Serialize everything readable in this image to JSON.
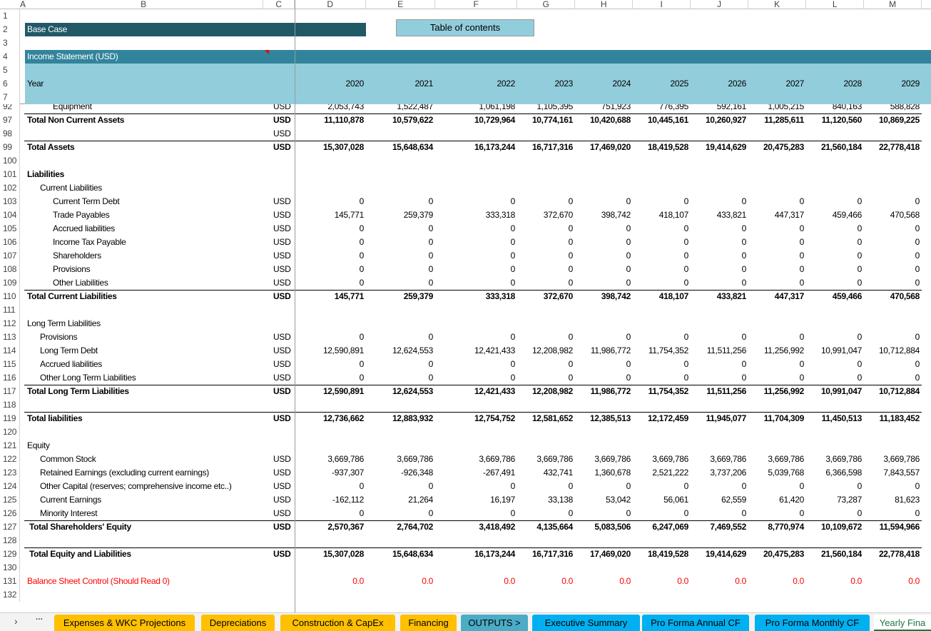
{
  "colors": {
    "base_case_bg": "#215967",
    "income_bg": "#31849B",
    "year_bg": "#92CDDC",
    "toc_bg": "#92CDDC",
    "control_red": "#FF0000",
    "tab_yellow": "#FFC000",
    "tab_teal": "#4BACC6",
    "tab_blue": "#00B0F0"
  },
  "columns": [
    "A",
    "B",
    "C",
    "D",
    "E",
    "F",
    "G",
    "H",
    "I",
    "J",
    "K",
    "L",
    "M"
  ],
  "header": {
    "base_case": "Base Case",
    "toc_button": "Table of contents",
    "income_statement": "Income Statement (USD)",
    "year_label": "Year",
    "years": [
      "2020",
      "2021",
      "2022",
      "2023",
      "2024",
      "2025",
      "2026",
      "2027",
      "2028",
      "2029"
    ],
    "frozen_rows": [
      "1",
      "2",
      "3",
      "4",
      "5",
      "6",
      "7"
    ]
  },
  "rows": [
    {
      "n": "92",
      "label": "Equipment",
      "indent": 2,
      "unit": "USD",
      "values": [
        "2,053,743",
        "1,522,487",
        "1,061,198",
        "1,105,395",
        "751,923",
        "776,395",
        "592,161",
        "1,005,215",
        "840,163",
        "588,828"
      ]
    },
    {
      "n": "97",
      "label": "Total Non Current Assets",
      "indent": 0,
      "bold": true,
      "line": true,
      "unit": "USD",
      "values": [
        "11,110,878",
        "10,579,622",
        "10,729,964",
        "10,774,161",
        "10,420,688",
        "10,445,161",
        "10,260,927",
        "11,285,611",
        "11,120,560",
        "10,869,225"
      ]
    },
    {
      "n": "98",
      "label": "",
      "unit": "USD",
      "values": []
    },
    {
      "n": "99",
      "label": "Total Assets",
      "indent": 0,
      "bold": true,
      "line": true,
      "unit": "USD",
      "values": [
        "15,307,028",
        "15,648,634",
        "16,173,244",
        "16,717,316",
        "17,469,020",
        "18,419,528",
        "19,414,629",
        "20,475,283",
        "21,560,184",
        "22,778,418"
      ]
    },
    {
      "n": "100",
      "label": "",
      "values": []
    },
    {
      "n": "101",
      "label": "Liabilities",
      "indent": 0,
      "bold": true,
      "values": []
    },
    {
      "n": "102",
      "label": "Current Liabilities",
      "indent": 1,
      "values": []
    },
    {
      "n": "103",
      "label": "Current Term Debt",
      "indent": 2,
      "unit": "USD",
      "values": [
        "0",
        "0",
        "0",
        "0",
        "0",
        "0",
        "0",
        "0",
        "0",
        "0"
      ]
    },
    {
      "n": "104",
      "label": "Trade Payables",
      "indent": 2,
      "unit": "USD",
      "values": [
        "145,771",
        "259,379",
        "333,318",
        "372,670",
        "398,742",
        "418,107",
        "433,821",
        "447,317",
        "459,466",
        "470,568"
      ]
    },
    {
      "n": "105",
      "label": "Accrued liabilities",
      "indent": 2,
      "unit": "USD",
      "values": [
        "0",
        "0",
        "0",
        "0",
        "0",
        "0",
        "0",
        "0",
        "0",
        "0"
      ]
    },
    {
      "n": "106",
      "label": "Income Tax Payable",
      "indent": 2,
      "unit": "USD",
      "values": [
        "0",
        "0",
        "0",
        "0",
        "0",
        "0",
        "0",
        "0",
        "0",
        "0"
      ]
    },
    {
      "n": "107",
      "label": "Shareholders",
      "indent": 2,
      "unit": "USD",
      "values": [
        "0",
        "0",
        "0",
        "0",
        "0",
        "0",
        "0",
        "0",
        "0",
        "0"
      ]
    },
    {
      "n": "108",
      "label": "Provisions",
      "indent": 2,
      "unit": "USD",
      "values": [
        "0",
        "0",
        "0",
        "0",
        "0",
        "0",
        "0",
        "0",
        "0",
        "0"
      ]
    },
    {
      "n": "109",
      "label": "Other Liabilities",
      "indent": 2,
      "unit": "USD",
      "values": [
        "0",
        "0",
        "0",
        "0",
        "0",
        "0",
        "0",
        "0",
        "0",
        "0"
      ]
    },
    {
      "n": "110",
      "label": "Total Current Liabilities",
      "indent": 0,
      "bold": true,
      "line": true,
      "unit": "USD",
      "values": [
        "145,771",
        "259,379",
        "333,318",
        "372,670",
        "398,742",
        "418,107",
        "433,821",
        "447,317",
        "459,466",
        "470,568"
      ]
    },
    {
      "n": "111",
      "label": "",
      "values": []
    },
    {
      "n": "112",
      "label": "Long Term Liabilities",
      "indent": 0,
      "values": []
    },
    {
      "n": "113",
      "label": "Provisions",
      "indent": 1,
      "unit": "USD",
      "values": [
        "0",
        "0",
        "0",
        "0",
        "0",
        "0",
        "0",
        "0",
        "0",
        "0"
      ]
    },
    {
      "n": "114",
      "label": "Long Term Debt",
      "indent": 1,
      "unit": "USD",
      "values": [
        "12,590,891",
        "12,624,553",
        "12,421,433",
        "12,208,982",
        "11,986,772",
        "11,754,352",
        "11,511,256",
        "11,256,992",
        "10,991,047",
        "10,712,884"
      ]
    },
    {
      "n": "115",
      "label": "Accrued liabilities",
      "indent": 1,
      "unit": "USD",
      "values": [
        "0",
        "0",
        "0",
        "0",
        "0",
        "0",
        "0",
        "0",
        "0",
        "0"
      ]
    },
    {
      "n": "116",
      "label": "Other Long Term Liabilities",
      "indent": 1,
      "unit": "USD",
      "values": [
        "0",
        "0",
        "0",
        "0",
        "0",
        "0",
        "0",
        "0",
        "0",
        "0"
      ]
    },
    {
      "n": "117",
      "label": "Total Long Term Liabilities",
      "indent": 0,
      "bold": true,
      "line": true,
      "unit": "USD",
      "values": [
        "12,590,891",
        "12,624,553",
        "12,421,433",
        "12,208,982",
        "11,986,772",
        "11,754,352",
        "11,511,256",
        "11,256,992",
        "10,991,047",
        "10,712,884"
      ]
    },
    {
      "n": "118",
      "label": "",
      "values": []
    },
    {
      "n": "119",
      "label": "Total liabilities",
      "indent": 0,
      "bold": true,
      "line": true,
      "unit": "USD",
      "values": [
        "12,736,662",
        "12,883,932",
        "12,754,752",
        "12,581,652",
        "12,385,513",
        "12,172,459",
        "11,945,077",
        "11,704,309",
        "11,450,513",
        "11,183,452"
      ]
    },
    {
      "n": "120",
      "label": "",
      "values": []
    },
    {
      "n": "121",
      "label": "Equity",
      "indent": 0,
      "values": []
    },
    {
      "n": "122",
      "label": "Common Stock",
      "indent": 1,
      "unit": "USD",
      "values": [
        "3,669,786",
        "3,669,786",
        "3,669,786",
        "3,669,786",
        "3,669,786",
        "3,669,786",
        "3,669,786",
        "3,669,786",
        "3,669,786",
        "3,669,786"
      ]
    },
    {
      "n": "123",
      "label": "Retained Earnings (excluding current earnings)",
      "indent": 1,
      "unit": "USD",
      "values": [
        "-937,307",
        "-926,348",
        "-267,491",
        "432,741",
        "1,360,678",
        "2,521,222",
        "3,737,206",
        "5,039,768",
        "6,366,598",
        "7,843,557"
      ]
    },
    {
      "n": "124",
      "label": "Other Capital (reserves; comprehensive income etc..)",
      "indent": 1,
      "unit": "USD",
      "values": [
        "0",
        "0",
        "0",
        "0",
        "0",
        "0",
        "0",
        "0",
        "0",
        "0"
      ]
    },
    {
      "n": "125",
      "label": "Current Earnings",
      "indent": 1,
      "unit": "USD",
      "values": [
        "-162,112",
        "21,264",
        "16,197",
        "33,138",
        "53,042",
        "56,061",
        "62,559",
        "61,420",
        "73,287",
        "81,623"
      ]
    },
    {
      "n": "126",
      "label": "Minority Interest",
      "indent": 1,
      "unit": "USD",
      "values": [
        "0",
        "0",
        "0",
        "0",
        "0",
        "0",
        "0",
        "0",
        "0",
        "0"
      ]
    },
    {
      "n": "127",
      "label": "Total Shareholders' Equity",
      "indent": 3,
      "bold": true,
      "line": true,
      "unit": "USD",
      "values": [
        "2,570,367",
        "2,764,702",
        "3,418,492",
        "4,135,664",
        "5,083,506",
        "6,247,069",
        "7,469,552",
        "8,770,974",
        "10,109,672",
        "11,594,966"
      ]
    },
    {
      "n": "128",
      "label": "",
      "values": []
    },
    {
      "n": "129",
      "label": "Total Equity and Liabilities",
      "indent": 3,
      "bold": true,
      "line": true,
      "unit": "USD",
      "values": [
        "15,307,028",
        "15,648,634",
        "16,173,244",
        "16,717,316",
        "17,469,020",
        "18,419,528",
        "19,414,629",
        "20,475,283",
        "21,560,184",
        "22,778,418"
      ]
    },
    {
      "n": "130",
      "label": "",
      "values": []
    },
    {
      "n": "131",
      "label": "Balance Sheet Control (Should Read 0)",
      "indent": 0,
      "red": true,
      "values": [
        "0.0",
        "0.0",
        "0.0",
        "0.0",
        "0.0",
        "0.0",
        "0.0",
        "0.0",
        "0.0",
        "0.0"
      ]
    },
    {
      "n": "132",
      "label": "",
      "values": []
    }
  ],
  "tabs": {
    "prev_arrow": "›",
    "more": "···",
    "items": [
      {
        "label": "Expenses & WKC Projections",
        "color": "#FFC000"
      },
      {
        "label": "Depreciations",
        "color": "#FFC000"
      },
      {
        "label": "Construction &  CapEx",
        "color": "#FFC000"
      },
      {
        "label": "Financing",
        "color": "#FFC000"
      },
      {
        "label": "OUTPUTS >",
        "color": "#4BACC6"
      },
      {
        "label": "Executive Summary",
        "color": "#00B0F0"
      },
      {
        "label": "Pro Forma Annual CF",
        "color": "#00B0F0"
      },
      {
        "label": "Pro Forma Monthly CF",
        "color": "#00B0F0"
      },
      {
        "label": "Yearly Fina",
        "color": "#ffffff",
        "active": true
      }
    ]
  }
}
